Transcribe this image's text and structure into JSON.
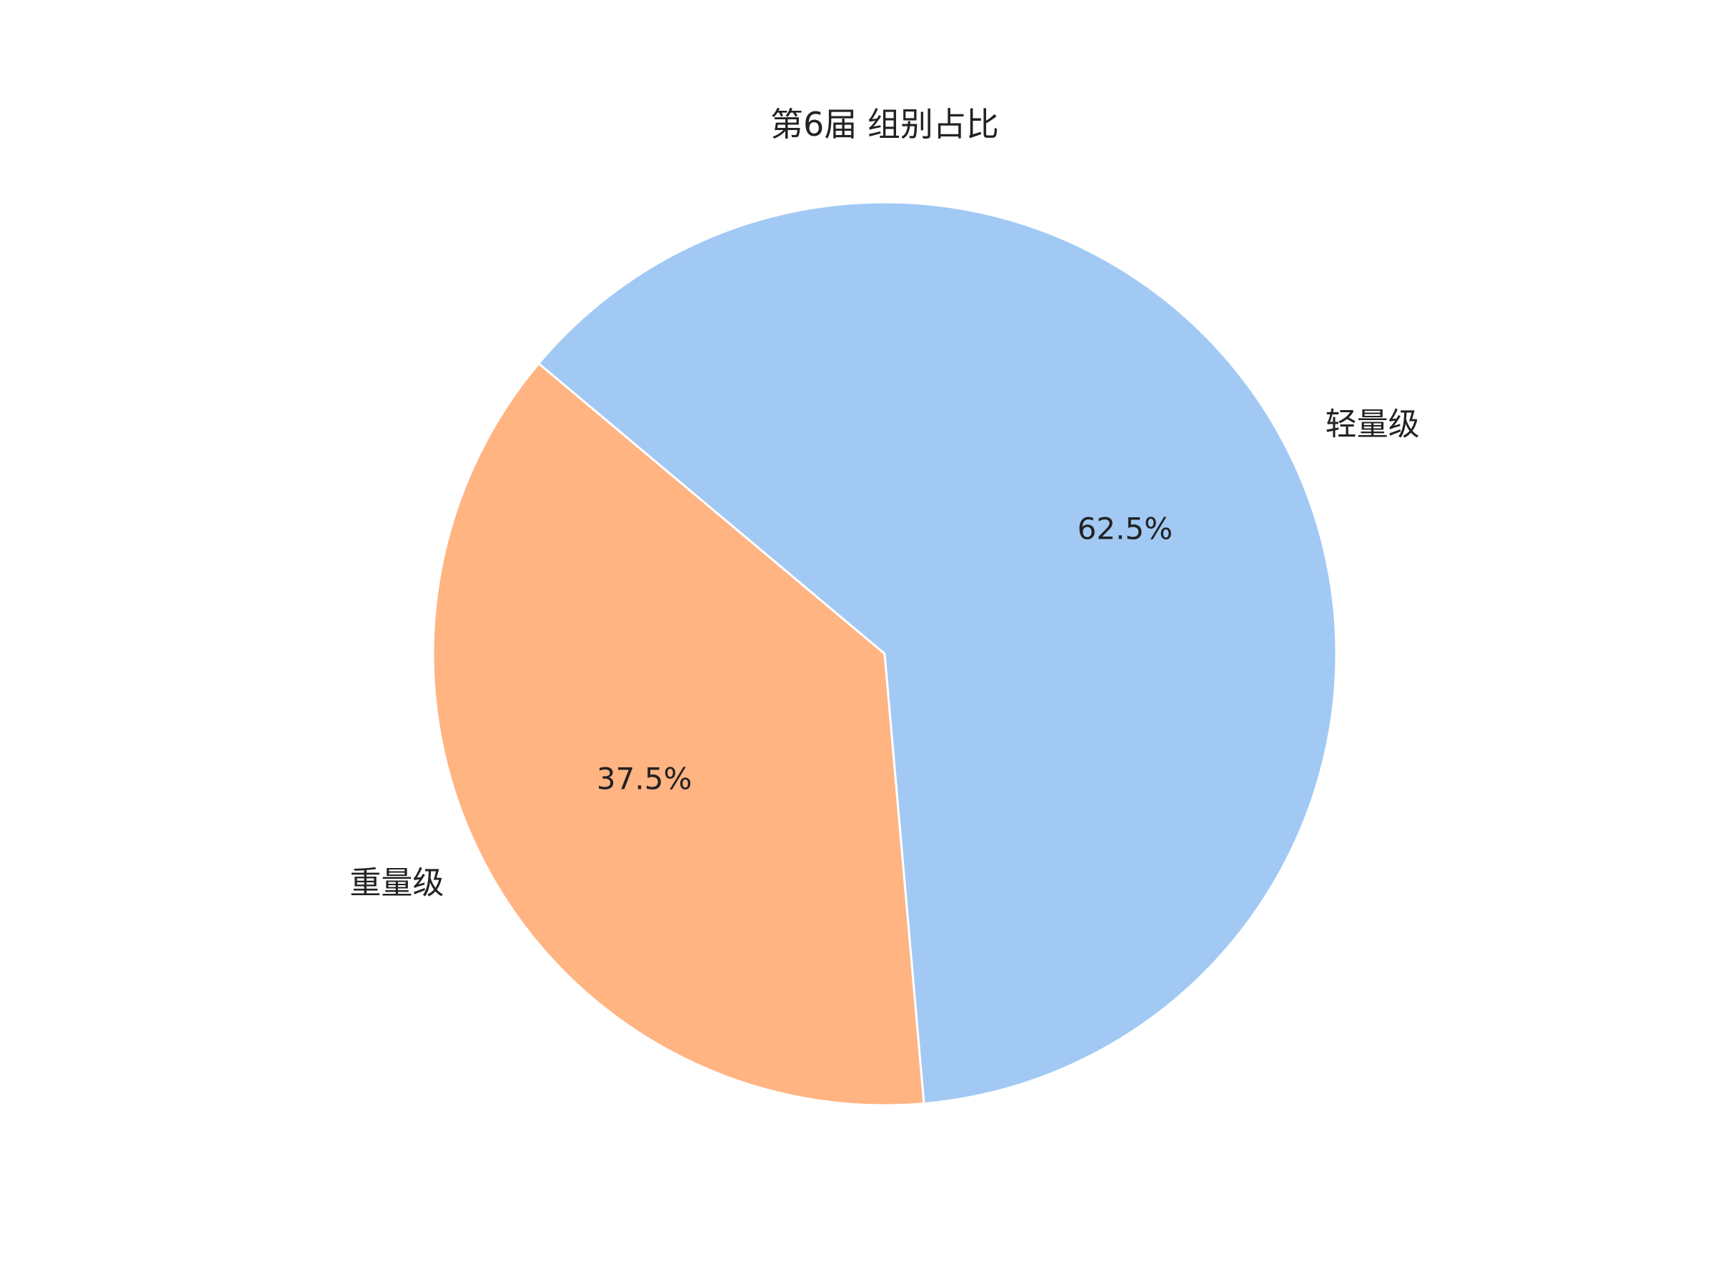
{
  "chart_data": {
    "type": "pie",
    "title": "第6届 组别占比",
    "labels": [
      "重量级",
      "轻量级"
    ],
    "values": [
      37.5,
      62.5
    ],
    "percent_labels": [
      "37.5%",
      "62.5%"
    ],
    "colors": [
      "#ffb482",
      "#a1c9f4"
    ],
    "edge_color": "#ffffff",
    "start_angle_deg": 140,
    "direction": "counterclockwise"
  }
}
